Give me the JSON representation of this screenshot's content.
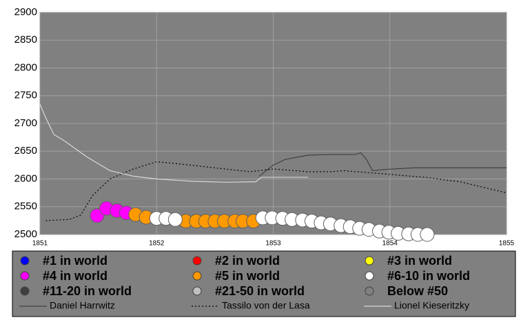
{
  "chart_data": {
    "type": "scatter",
    "xlim": [
      1851,
      1855
    ],
    "ylim": [
      2500,
      2900
    ],
    "xticks": [
      1851,
      1852,
      1853,
      1854,
      1855
    ],
    "yticks": [
      2500,
      2550,
      2600,
      2650,
      2700,
      2750,
      2800,
      2850,
      2900
    ],
    "grid": true,
    "background": "#808080",
    "legend": "bottom",
    "series": [
      {
        "name": "#1 in world",
        "color": "#0000ff",
        "x": [],
        "values": []
      },
      {
        "name": "#2 in world",
        "color": "#ff0000",
        "x": [],
        "values": []
      },
      {
        "name": "#3 in world",
        "color": "#ffff00",
        "x": [],
        "values": []
      },
      {
        "name": "#4 in world",
        "color": "#ff00ff",
        "x": [
          1851.49,
          1851.57,
          1851.66,
          1851.74
        ],
        "values": [
          2534,
          2547,
          2543,
          2539
        ]
      },
      {
        "name": "#5 in world",
        "color": "#ff9900",
        "x": [
          1851.82,
          1851.91,
          1852.25,
          1852.34,
          1852.42,
          1852.5,
          1852.58,
          1852.67,
          1852.74,
          1852.83
        ],
        "values": [
          2536,
          2531,
          2524,
          2524,
          2524,
          2524,
          2524,
          2524,
          2524,
          2524
        ]
      },
      {
        "name": "#6-10 in world",
        "color": "#ffffff",
        "x": [
          1852.0,
          1852.08,
          1852.16,
          1852.91,
          1852.99,
          1853.08,
          1853.16,
          1853.25,
          1853.33,
          1853.41,
          1853.49,
          1853.58,
          1853.66,
          1853.74,
          1853.82,
          1853.91,
          1853.99,
          1854.07,
          1854.16,
          1854.24,
          1854.32
        ],
        "values": [
          2529,
          2529,
          2527,
          2530,
          2530,
          2529,
          2527,
          2526,
          2524,
          2521,
          2519,
          2516,
          2514,
          2511,
          2509,
          2506,
          2504,
          2502,
          2501,
          2500,
          2500
        ]
      },
      {
        "name": "#11-20 in world",
        "color": "#404040",
        "x": [],
        "values": []
      },
      {
        "name": "#21-50 in world",
        "color": "#c0c0c0",
        "x": [],
        "values": []
      },
      {
        "name": "Below #50",
        "color": "#808080",
        "x": [],
        "values": []
      }
    ],
    "lines": [
      {
        "name": "Daniel Harrwitz",
        "color": "#404040",
        "dashed": false,
        "x": [
          1852.88,
          1853.0,
          1853.1,
          1853.3,
          1853.5,
          1853.7,
          1853.75,
          1853.8,
          1853.85,
          1853.95,
          1854.2,
          1855
        ],
        "values": [
          2605,
          2625,
          2635,
          2643,
          2644,
          2644,
          2647,
          2635,
          2615,
          2617,
          2620,
          2620
        ]
      },
      {
        "name": "Tassilo von der Lasa",
        "color": "#000000",
        "dashed": true,
        "x": [
          1851.05,
          1851.25,
          1851.35,
          1851.45,
          1851.6,
          1851.8,
          1852.0,
          1852.2,
          1852.5,
          1852.8,
          1853.0,
          1853.3,
          1853.5,
          1853.6,
          1853.9,
          1854.3,
          1854.6,
          1855
        ],
        "values": [
          2525,
          2527,
          2535,
          2570,
          2600,
          2618,
          2631,
          2627,
          2620,
          2613,
          2618,
          2613,
          2613,
          2615,
          2610,
          2603,
          2595,
          2575
        ]
      },
      {
        "name": "Lionel Kieseritzky",
        "color": "#d8d8d8",
        "dashed": false,
        "x": [
          1851,
          1851.05,
          1851.12,
          1851.2,
          1851.4,
          1851.6,
          1851.8,
          1852.0,
          1852.3,
          1852.6,
          1852.85,
          1852.9,
          1853.3
        ],
        "values": [
          2735,
          2710,
          2680,
          2670,
          2640,
          2615,
          2605,
          2600,
          2596,
          2594,
          2595,
          2603,
          2603
        ]
      }
    ]
  }
}
